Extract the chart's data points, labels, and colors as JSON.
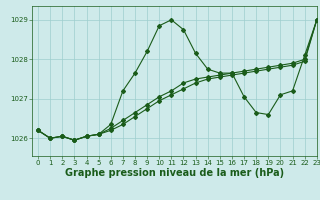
{
  "title": "Graphe pression niveau de la mer (hPa)",
  "bg_color": "#ceeaea",
  "grid_color": "#9ecece",
  "line_color": "#1a5c1a",
  "xlim": [
    -0.5,
    23
  ],
  "ylim": [
    1025.55,
    1029.35
  ],
  "yticks": [
    1026,
    1027,
    1028,
    1029
  ],
  "xticks": [
    0,
    1,
    2,
    3,
    4,
    5,
    6,
    7,
    8,
    9,
    10,
    11,
    12,
    13,
    14,
    15,
    16,
    17,
    18,
    19,
    20,
    21,
    22,
    23
  ],
  "series1_y": [
    1026.2,
    1026.0,
    1026.05,
    1025.95,
    1026.05,
    1026.1,
    1026.35,
    1027.2,
    1027.65,
    1028.2,
    1028.85,
    1029.0,
    1028.75,
    1028.15,
    1027.75,
    1027.65,
    1027.65,
    1027.05,
    1026.65,
    1026.6,
    1027.1,
    1027.2,
    1028.1,
    1029.0
  ],
  "series2_y": [
    1026.2,
    1026.0,
    1026.05,
    1025.95,
    1026.05,
    1026.1,
    1026.2,
    1026.35,
    1026.55,
    1026.75,
    1026.95,
    1027.1,
    1027.25,
    1027.4,
    1027.5,
    1027.55,
    1027.6,
    1027.65,
    1027.7,
    1027.75,
    1027.8,
    1027.85,
    1027.95,
    1029.0
  ],
  "series3_y": [
    1026.2,
    1026.0,
    1026.05,
    1025.95,
    1026.05,
    1026.1,
    1026.25,
    1026.45,
    1026.65,
    1026.85,
    1027.05,
    1027.2,
    1027.4,
    1027.5,
    1027.55,
    1027.6,
    1027.65,
    1027.7,
    1027.75,
    1027.8,
    1027.85,
    1027.9,
    1028.0,
    1029.0
  ],
  "tick_fontsize": 5.0,
  "title_fontsize": 7.0,
  "lw": 0.8,
  "ms": 2.0
}
